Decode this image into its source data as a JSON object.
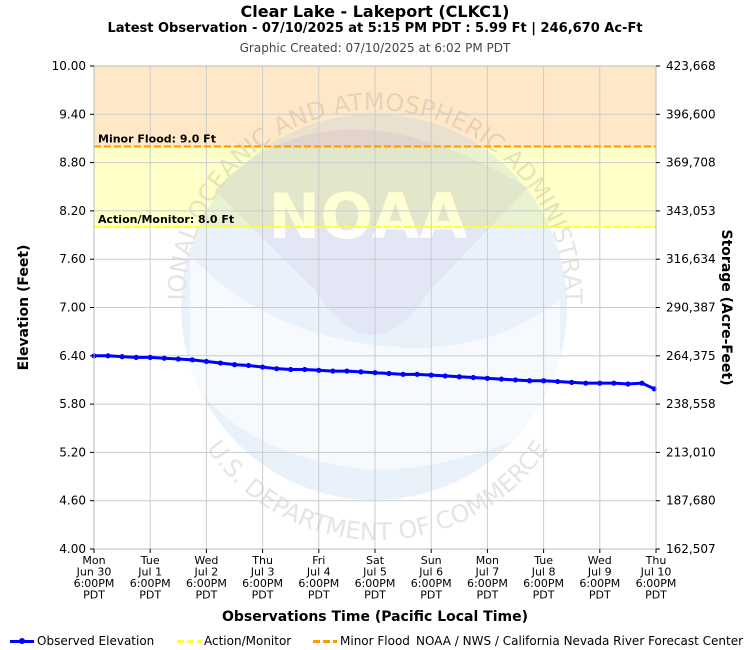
{
  "header": {
    "title": "Clear Lake - Lakeport (CLKC1)",
    "subtitle": "Latest Observation - 07/10/2025 at 5:15 PM PDT : 5.99 Ft | 246,670 Ac-Ft",
    "created": "Graphic Created: 07/10/2025 at 6:02 PM PDT"
  },
  "watermark": {
    "text_top": "NATIONAL OCEANIC AND ATMOSPHERIC ADMINISTRATION",
    "text_bottom": "U.S. DEPARTMENT OF COMMERCE",
    "logo_text": "NOAA"
  },
  "chart_data": {
    "type": "line",
    "ylabel_left": "Elevation (Feet)",
    "ylabel_right": "Storage (Acre-Feet)",
    "xlabel": "Observations Time (Pacific Local Time)",
    "ylim": [
      4.0,
      10.0
    ],
    "y_ticks": [
      "4.00",
      "4.60",
      "5.20",
      "5.80",
      "6.40",
      "7.00",
      "7.60",
      "8.20",
      "8.80",
      "9.40",
      "10.00"
    ],
    "y_ticks_right": [
      "162,507",
      "187,680",
      "213,010",
      "238,558",
      "264,375",
      "290,387",
      "316,634",
      "343,053",
      "369,708",
      "396,600",
      "423,668"
    ],
    "x_ticks": [
      [
        "Mon",
        "Jun 30",
        "6:00PM",
        "PDT"
      ],
      [
        "Tue",
        "Jul 1",
        "6:00PM",
        "PDT"
      ],
      [
        "Wed",
        "Jul 2",
        "6:00PM",
        "PDT"
      ],
      [
        "Thu",
        "Jul 3",
        "6:00PM",
        "PDT"
      ],
      [
        "Fri",
        "Jul 4",
        "6:00PM",
        "PDT"
      ],
      [
        "Sat",
        "Jul 5",
        "6:00PM",
        "PDT"
      ],
      [
        "Sun",
        "Jul 6",
        "6:00PM",
        "PDT"
      ],
      [
        "Mon",
        "Jul 7",
        "6:00PM",
        "PDT"
      ],
      [
        "Tue",
        "Jul 8",
        "6:00PM",
        "PDT"
      ],
      [
        "Wed",
        "Jul 9",
        "6:00PM",
        "PDT"
      ],
      [
        "Thu",
        "Jul 10",
        "6:00PM",
        "PDT"
      ]
    ],
    "thresholds": [
      {
        "name": "Minor Flood",
        "label": "Minor Flood: 9.0 Ft",
        "value": 9.0,
        "color": "#ff9900",
        "band_color": "#ffe8c8"
      },
      {
        "name": "Action/Monitor",
        "label": "Action/Monitor: 8.0 Ft",
        "value": 8.0,
        "color": "#ffff33",
        "band_color": "#ffffc8"
      }
    ],
    "series": [
      {
        "name": "Observed Elevation",
        "color": "#0000ff",
        "x": [
          "06/30 18:00",
          "07/01 00:00",
          "07/01 06:00",
          "07/01 12:00",
          "07/01 18:00",
          "07/02 00:00",
          "07/02 06:00",
          "07/02 12:00",
          "07/02 18:00",
          "07/03 00:00",
          "07/03 06:00",
          "07/03 12:00",
          "07/03 18:00",
          "07/04 00:00",
          "07/04 06:00",
          "07/04 12:00",
          "07/04 18:00",
          "07/05 00:00",
          "07/05 06:00",
          "07/05 12:00",
          "07/05 18:00",
          "07/06 00:00",
          "07/06 06:00",
          "07/06 12:00",
          "07/06 18:00",
          "07/07 00:00",
          "07/07 06:00",
          "07/07 12:00",
          "07/07 18:00",
          "07/08 00:00",
          "07/08 06:00",
          "07/08 12:00",
          "07/08 18:00",
          "07/09 00:00",
          "07/09 06:00",
          "07/09 12:00",
          "07/09 18:00",
          "07/10 00:00",
          "07/10 06:00",
          "07/10 12:00",
          "07/10 17:15"
        ],
        "y": [
          6.4,
          6.4,
          6.39,
          6.38,
          6.38,
          6.37,
          6.36,
          6.35,
          6.33,
          6.31,
          6.29,
          6.28,
          6.26,
          6.24,
          6.23,
          6.23,
          6.22,
          6.21,
          6.21,
          6.2,
          6.19,
          6.18,
          6.17,
          6.17,
          6.16,
          6.15,
          6.14,
          6.13,
          6.12,
          6.11,
          6.1,
          6.09,
          6.09,
          6.08,
          6.07,
          6.06,
          6.06,
          6.06,
          6.05,
          6.06,
          5.99
        ]
      }
    ]
  },
  "legend": {
    "observed": "Observed Elevation",
    "action": "Action/Monitor",
    "minor": "Minor Flood"
  },
  "credit": "NOAA / NWS / California Nevada River Forecast Center"
}
